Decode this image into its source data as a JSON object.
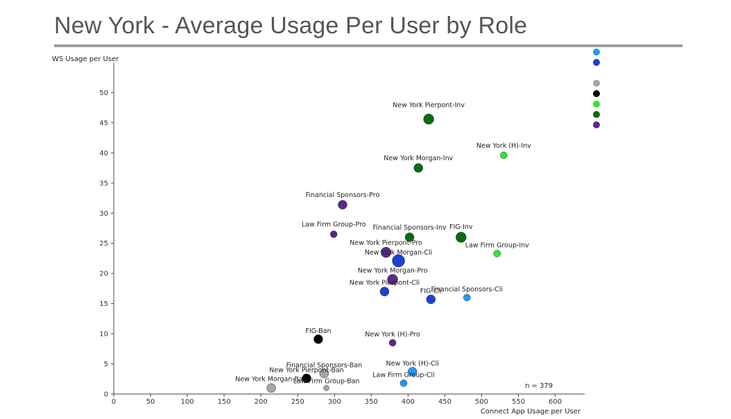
{
  "page": {
    "title": "New York - Average Usage Per User by Role"
  },
  "chart_data": {
    "type": "scatter",
    "title": "",
    "xlabel": "Connect App Usage per User",
    "ylabel": "WS Usage per User",
    "xlim": [
      0,
      640
    ],
    "ylim": [
      0,
      55
    ],
    "xticks": [
      0,
      50,
      100,
      150,
      200,
      250,
      300,
      350,
      400,
      450,
      500,
      550,
      600
    ],
    "yticks": [
      0,
      5,
      10,
      15,
      20,
      25,
      30,
      35,
      40,
      45,
      50
    ],
    "grid": false,
    "annotation": "n = 379",
    "legend_colors": [
      "#1e9cf0",
      "#1f3fd0",
      "#a6a6a6",
      "#000000",
      "#2ee82e",
      "#0b6b12",
      "#5a2a86"
    ],
    "points": [
      {
        "label": "New York Pierpont-Inv",
        "x": 428,
        "y": 45.6,
        "size": "large",
        "color": "#0b6b12"
      },
      {
        "label": "New York (H)-Inv",
        "x": 530,
        "y": 39.6,
        "size": "small",
        "color": "#2ee82e"
      },
      {
        "label": "New York Morgan-Inv",
        "x": 414,
        "y": 37.5,
        "size": "medium",
        "color": "#0b6b12"
      },
      {
        "label": "Financial Sponsors-Pro",
        "x": 311,
        "y": 31.4,
        "size": "medium",
        "color": "#5a2a86"
      },
      {
        "label": "Law Firm Group-Pro",
        "x": 299,
        "y": 26.5,
        "size": "small",
        "color": "#5a2a86"
      },
      {
        "label": "Financial Sponsors-Inv",
        "x": 402,
        "y": 26.0,
        "size": "medium",
        "color": "#0b6b12"
      },
      {
        "label": "FIG-Inv",
        "x": 472,
        "y": 26.0,
        "size": "large",
        "color": "#0b6b12"
      },
      {
        "label": "Law Firm Group-Inv",
        "x": 521,
        "y": 23.3,
        "size": "small",
        "color": "#2ee82e"
      },
      {
        "label": "New York Pierpont-Pro",
        "x": 370,
        "y": 23.5,
        "size": "large",
        "color": "#5a2a86"
      },
      {
        "label": "New York Morgan-Cli",
        "x": 387,
        "y": 22.1,
        "size": "xlarge",
        "color": "#1f3fd0"
      },
      {
        "label": "New York Morgan-Pro",
        "x": 379,
        "y": 19.0,
        "size": "large",
        "color": "#5a2a86"
      },
      {
        "label": "New York Pierpont-Cli",
        "x": 368,
        "y": 17.0,
        "size": "medium",
        "color": "#1f3fd0"
      },
      {
        "label": "FIG-Cli",
        "x": 431,
        "y": 15.7,
        "size": "medium",
        "color": "#1f3fd0"
      },
      {
        "label": "Financial Sponsors-Cli",
        "x": 480,
        "y": 16.0,
        "size": "small",
        "color": "#1e9cf0"
      },
      {
        "label": "FIG-Ban",
        "x": 278,
        "y": 9.1,
        "size": "medium",
        "color": "#000000"
      },
      {
        "label": "New York (H)-Pro",
        "x": 379,
        "y": 8.5,
        "size": "small",
        "color": "#5a2a86"
      },
      {
        "label": "New York (H)-Cli",
        "x": 406,
        "y": 3.7,
        "size": "medium",
        "color": "#1e9cf0"
      },
      {
        "label": "Financial Sponsors-Ban",
        "x": 286,
        "y": 3.4,
        "size": "medium",
        "color": "#a6a6a6"
      },
      {
        "label": "New York Pierpont-Ban",
        "x": 262,
        "y": 2.6,
        "size": "medium",
        "color": "#000000"
      },
      {
        "label": "Law Firm Group-Cli",
        "x": 394,
        "y": 1.8,
        "size": "small",
        "color": "#1e9cf0"
      },
      {
        "label": "Law Firm Group-Ban",
        "x": 289,
        "y": 1.0,
        "size": "xsmall",
        "color": "#a6a6a6"
      },
      {
        "label": "New York Morgan-Ban",
        "x": 214,
        "y": 1.0,
        "size": "medium",
        "color": "#a6a6a6"
      }
    ]
  }
}
